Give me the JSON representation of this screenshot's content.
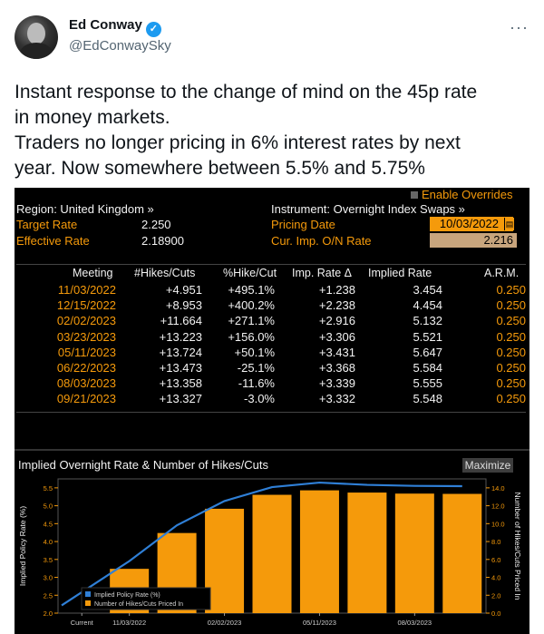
{
  "author": {
    "name": "Ed Conway",
    "handle": "@EdConwaySky",
    "verified_icon": "verified-badge-icon"
  },
  "tweet_lines": [
    "Instant response to the change of mind on the 45p rate",
    "in money markets.",
    "Traders no longer pricing in 6% interest rates by next",
    "year. Now somewhere between 5.5% and 5.75%"
  ],
  "terminal": {
    "enable_overrides": "Enable Overrides",
    "region": "Region: United Kingdom »",
    "instrument": "Instrument: Overnight Index Swaps »",
    "target_rate_label": "Target Rate",
    "target_rate_value": "2.250",
    "effective_rate_label": "Effective Rate",
    "effective_rate_value": "2.18900",
    "pricing_date_label": "Pricing Date",
    "pricing_date_value": "10/03/2022",
    "cur_imp_label": "Cur. Imp. O/N Rate",
    "cur_imp_value": "2.216",
    "table": {
      "headers": [
        "Meeting",
        "#Hikes/Cuts",
        "%Hike/Cut",
        "Imp. Rate Δ",
        "Implied Rate",
        "A.R.M."
      ],
      "rows": [
        [
          "11/03/2022",
          "+4.951",
          "+495.1%",
          "+1.238",
          "3.454",
          "0.250"
        ],
        [
          "12/15/2022",
          "+8.953",
          "+400.2%",
          "+2.238",
          "4.454",
          "0.250"
        ],
        [
          "02/02/2023",
          "+11.664",
          "+271.1%",
          "+2.916",
          "5.132",
          "0.250"
        ],
        [
          "03/23/2023",
          "+13.223",
          "+156.0%",
          "+3.306",
          "5.521",
          "0.250"
        ],
        [
          "05/11/2023",
          "+13.724",
          "+50.1%",
          "+3.431",
          "5.647",
          "0.250"
        ],
        [
          "06/22/2023",
          "+13.473",
          "-25.1%",
          "+3.368",
          "5.584",
          "0.250"
        ],
        [
          "08/03/2023",
          "+13.358",
          "-11.6%",
          "+3.339",
          "5.555",
          "0.250"
        ],
        [
          "09/21/2023",
          "+13.327",
          "-3.0%",
          "+3.332",
          "5.548",
          "0.250"
        ]
      ]
    },
    "chart_title": "Implied Overnight Rate & Number of Hikes/Cuts",
    "maximize_label": "Maximize"
  },
  "chart_data": {
    "type": "bar",
    "title": "Implied Overnight Rate & Number of Hikes/Cuts",
    "ylabel_left": "Implied Policy Rate (%)",
    "ylabel_right": "Number of Hikes/Cuts Priced In",
    "left_ylim": [
      2.0,
      5.75
    ],
    "right_ylim": [
      0,
      15
    ],
    "left_ticks": [
      "2.0",
      "2.5",
      "3.0",
      "3.5",
      "4.0",
      "4.5",
      "5.0",
      "5.5"
    ],
    "right_ticks": [
      "0.0",
      "2.0",
      "4.0",
      "6.0",
      "8.0",
      "10.0",
      "12.0",
      "14.0"
    ],
    "x_tick_labels": [
      "Current",
      "11/03/2022",
      "02/02/2023",
      "05/11/2023",
      "08/03/2023"
    ],
    "x_tick_index": [
      0,
      1,
      3,
      5,
      7
    ],
    "categories": [
      "Current",
      "11/03/2022",
      "12/15/2022",
      "02/02/2023",
      "03/23/2023",
      "05/11/2023",
      "06/22/2023",
      "08/03/2023",
      "09/21/2023"
    ],
    "series": [
      {
        "name": "Implied Policy Rate (%)",
        "type": "line",
        "color": "#2f7fd6",
        "values": [
          2.216,
          3.454,
          4.454,
          5.132,
          5.521,
          5.647,
          5.584,
          5.555,
          5.548
        ]
      },
      {
        "name": "Number of Hikes/Cuts Priced In",
        "type": "bar",
        "color": "#f59a0b",
        "values": [
          0,
          4.951,
          8.953,
          11.664,
          13.223,
          13.724,
          13.473,
          13.358,
          13.327
        ]
      }
    ],
    "legend_position": "bottom-left"
  }
}
